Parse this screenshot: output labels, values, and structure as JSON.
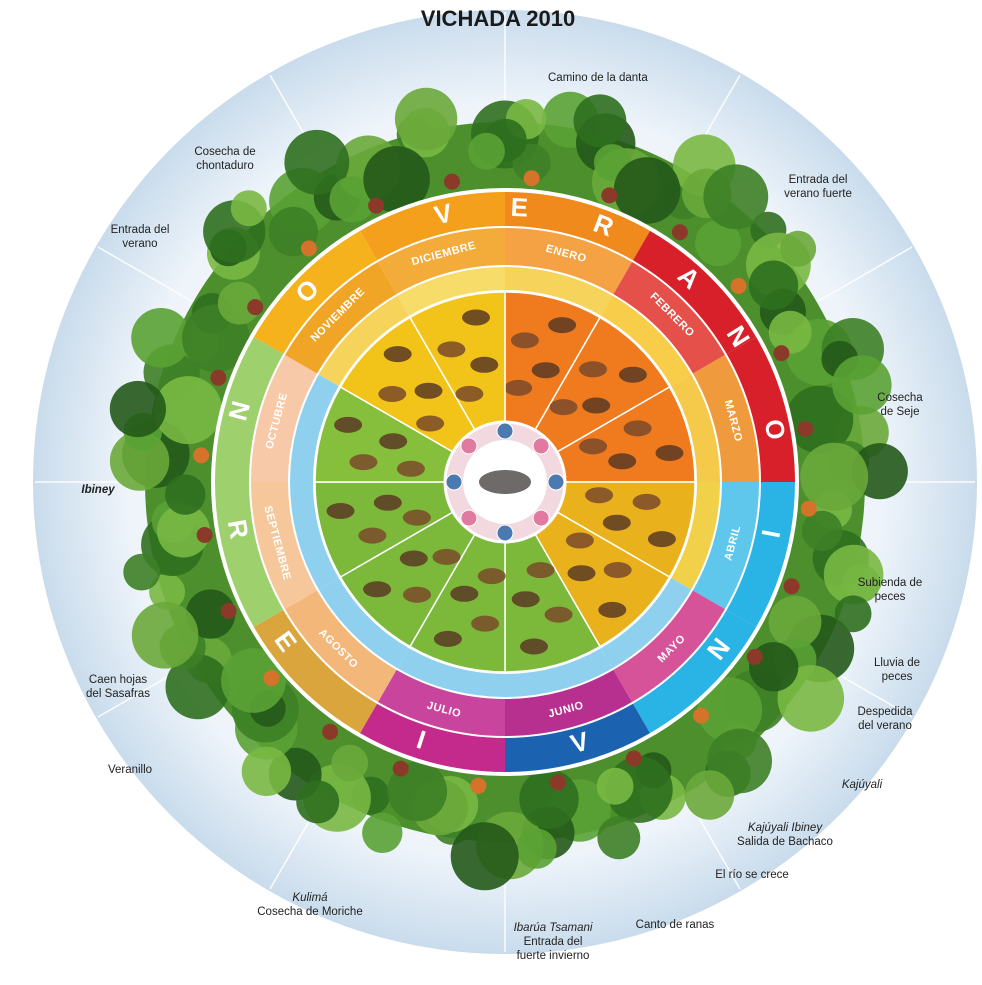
{
  "title": "VICHADA 2010",
  "months": [
    "ENERO",
    "FEBRERO",
    "MARZO",
    "ABRIL",
    "MAYO",
    "JUNIO",
    "JULIO",
    "AGOSTO",
    "SEPTIEMBRE",
    "OCTUBRE",
    "NOVIEMBRE",
    "DICIEMBRE"
  ],
  "seasons": [
    {
      "letters": [
        "V",
        "E",
        "R",
        "A",
        "N",
        "O"
      ]
    },
    {
      "letters": [
        "I",
        "N",
        "V",
        "I",
        "E",
        "R",
        "N",
        "O"
      ]
    }
  ],
  "annotations": [
    {
      "lines": [
        "Camino de la danta"
      ]
    },
    {
      "lines": [
        "Entrada del",
        "verano fuerte"
      ]
    },
    {
      "lines": [
        "Cosecha",
        "de Seje"
      ]
    },
    {
      "lines": [
        "Subienda de",
        "peces"
      ]
    },
    {
      "lines": [
        "Lluvia de",
        "peces"
      ]
    },
    {
      "lines": [
        "Despedida",
        "del verano"
      ]
    },
    {
      "lines": [
        "Kajúyali"
      ]
    },
    {
      "lines": [
        "Kajúyali Ibiney",
        "Salida de Bachaco"
      ]
    },
    {
      "lines": [
        "El río se crece"
      ]
    },
    {
      "lines": [
        "Canto de ranas"
      ]
    },
    {
      "lines": [
        "Ibarúa Tsamani",
        "Entrada del",
        "fuerte invierno"
      ]
    },
    {
      "lines": [
        "Kulimá",
        "Cosecha de Moriche"
      ]
    },
    {
      "lines": [
        "Veranillo"
      ]
    },
    {
      "lines": [
        "Caen hojas",
        "del Sasafras"
      ]
    },
    {
      "lines": [
        "Ibiney"
      ]
    },
    {
      "lines": [
        "Entrada del",
        "verano"
      ]
    },
    {
      "lines": [
        "Cosecha de",
        "chontaduro"
      ]
    }
  ]
}
